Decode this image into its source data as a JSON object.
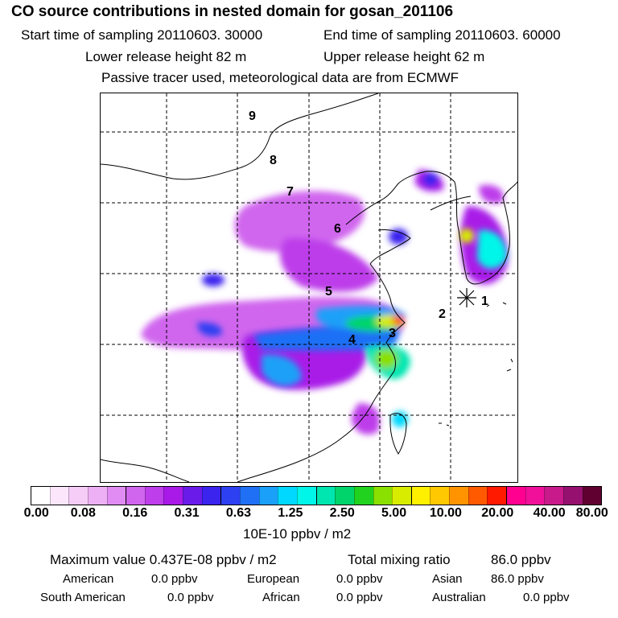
{
  "header": {
    "title": "CO  source contributions in nested domain for gosan_201106",
    "start_time": "Start time of sampling 20110603. 30000",
    "end_time": "End time of sampling 20110603. 60000",
    "lower_release": "Lower release height   82 m",
    "upper_release": "Upper release height   62 m",
    "tracer_note": "Passive tracer used, meteorological data are from ECMWF"
  },
  "map": {
    "trajectory_labels": [
      "1",
      "2",
      "3",
      "4",
      "5",
      "6",
      "7",
      "8",
      "9"
    ]
  },
  "colorbar": {
    "colors": [
      "#ffffff",
      "#fbe6fb",
      "#f5cdf7",
      "#eeb0f5",
      "#e08cf2",
      "#d066ee",
      "#bd3eea",
      "#a91ae8",
      "#6a1bea",
      "#3b24ee",
      "#2d40f2",
      "#1f70f5",
      "#1aa0f8",
      "#00d8ff",
      "#00f6e8",
      "#00e6b0",
      "#00d46a",
      "#21d21f",
      "#8ae000",
      "#d8ec00",
      "#fff000",
      "#ffc800",
      "#ff9400",
      "#ff5a00",
      "#ff1a00",
      "#ff0090",
      "#f0109a",
      "#c81a8a",
      "#961070",
      "#600030"
    ],
    "tick_labels": [
      "0.00",
      "0.08",
      "0.16",
      "0.31",
      "0.63",
      "1.25",
      "2.50",
      "5.00",
      "10.00",
      "20.00",
      "40.00",
      "80.00"
    ],
    "unit": "10E-10 ppbv / m2"
  },
  "summary": {
    "maximum_value": "Maximum value  0.437E-08 ppbv / m2",
    "total_mixing_ratio_label": "Total mixing ratio",
    "total_mixing_ratio_value": "86.0 ppbv"
  },
  "regions": [
    {
      "name": "American",
      "value": "0.0 ppbv"
    },
    {
      "name": "European",
      "value": "0.0 ppbv"
    },
    {
      "name": "Asian",
      "value": "86.0 ppbv"
    },
    {
      "name": "South American",
      "value": "0.0 ppbv"
    },
    {
      "name": "African",
      "value": "0.0 ppbv"
    },
    {
      "name": "Australian",
      "value": "0.0 ppbv"
    }
  ]
}
